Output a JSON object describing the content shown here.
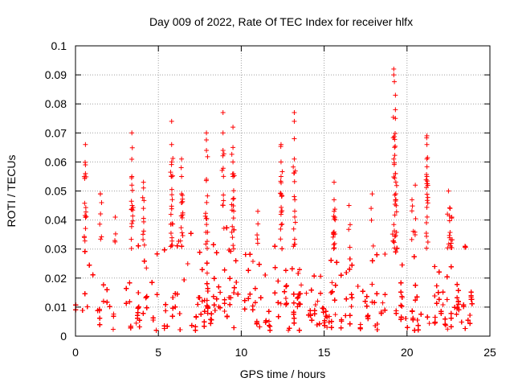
{
  "chart_data": {
    "type": "scatter",
    "title": "Day 009 of 2022, Rate Of TEC Index for receiver hlfx",
    "xlabel": "GPS time / hours",
    "ylabel": "ROTI / TECUs",
    "xlim": [
      0,
      25
    ],
    "ylim": [
      0,
      0.1
    ],
    "x_ticks": [
      "0",
      "5",
      "10",
      "15",
      "20",
      "25"
    ],
    "y_ticks": [
      "0",
      "0.01",
      "0.02",
      "0.03",
      "0.04",
      "0.05",
      "0.06",
      "0.07",
      "0.08",
      "0.09",
      "0.1"
    ],
    "grid": true,
    "marker": "+",
    "color": "#ff0000",
    "x_extent": [
      0,
      24
    ],
    "series": [
      {
        "name": "",
        "notable_points": [
          {
            "x": 0.6,
            "y": 0.066
          },
          {
            "x": 0.6,
            "y": 0.059
          },
          {
            "x": 0.6,
            "y": 0.056
          },
          {
            "x": 1.5,
            "y": 0.049
          },
          {
            "x": 2.4,
            "y": 0.041
          },
          {
            "x": 3.4,
            "y": 0.07
          },
          {
            "x": 3.4,
            "y": 0.055
          },
          {
            "x": 3.4,
            "y": 0.052
          },
          {
            "x": 4.1,
            "y": 0.053
          },
          {
            "x": 4.1,
            "y": 0.044
          },
          {
            "x": 5.8,
            "y": 0.074
          },
          {
            "x": 5.8,
            "y": 0.066
          },
          {
            "x": 5.8,
            "y": 0.06
          },
          {
            "x": 5.8,
            "y": 0.055
          },
          {
            "x": 6.4,
            "y": 0.061
          },
          {
            "x": 6.4,
            "y": 0.055
          },
          {
            "x": 6.4,
            "y": 0.049
          },
          {
            "x": 7.9,
            "y": 0.07
          },
          {
            "x": 7.9,
            "y": 0.064
          },
          {
            "x": 7.9,
            "y": 0.054
          },
          {
            "x": 8.9,
            "y": 0.077
          },
          {
            "x": 8.9,
            "y": 0.07
          },
          {
            "x": 8.9,
            "y": 0.064
          },
          {
            "x": 9.5,
            "y": 0.072
          },
          {
            "x": 9.5,
            "y": 0.065
          },
          {
            "x": 9.5,
            "y": 0.06
          },
          {
            "x": 9.5,
            "y": 0.055
          },
          {
            "x": 11.0,
            "y": 0.043
          },
          {
            "x": 12.4,
            "y": 0.066
          },
          {
            "x": 12.4,
            "y": 0.06
          },
          {
            "x": 12.4,
            "y": 0.055
          },
          {
            "x": 12.4,
            "y": 0.049
          },
          {
            "x": 13.2,
            "y": 0.077
          },
          {
            "x": 13.2,
            "y": 0.074
          },
          {
            "x": 13.2,
            "y": 0.068
          },
          {
            "x": 13.2,
            "y": 0.061
          },
          {
            "x": 15.6,
            "y": 0.053
          },
          {
            "x": 15.6,
            "y": 0.047
          },
          {
            "x": 15.6,
            "y": 0.043
          },
          {
            "x": 16.5,
            "y": 0.045
          },
          {
            "x": 17.9,
            "y": 0.049
          },
          {
            "x": 19.2,
            "y": 0.092
          },
          {
            "x": 19.2,
            "y": 0.09
          },
          {
            "x": 19.3,
            "y": 0.083
          },
          {
            "x": 19.3,
            "y": 0.078
          },
          {
            "x": 19.3,
            "y": 0.075
          },
          {
            "x": 19.2,
            "y": 0.061
          },
          {
            "x": 19.3,
            "y": 0.056
          },
          {
            "x": 20.5,
            "y": 0.052
          },
          {
            "x": 20.3,
            "y": 0.047
          },
          {
            "x": 21.2,
            "y": 0.069
          },
          {
            "x": 21.2,
            "y": 0.066
          },
          {
            "x": 21.2,
            "y": 0.061
          },
          {
            "x": 21.2,
            "y": 0.055
          },
          {
            "x": 22.5,
            "y": 0.05
          },
          {
            "x": 22.6,
            "y": 0.044
          },
          {
            "x": 22.7,
            "y": 0.041
          },
          {
            "x": 23.5,
            "y": 0.031
          }
        ],
        "dense_band": [
          {
            "x": 0,
            "y_low": 0.002,
            "y_high": 0.028
          },
          {
            "x": 1,
            "y_low": 0.002,
            "y_high": 0.033
          },
          {
            "x": 2,
            "y_low": 0.002,
            "y_high": 0.025
          },
          {
            "x": 3,
            "y_low": 0.002,
            "y_high": 0.03
          },
          {
            "x": 4,
            "y_low": 0.002,
            "y_high": 0.031
          },
          {
            "x": 5,
            "y_low": 0.002,
            "y_high": 0.03
          },
          {
            "x": 6,
            "y_low": 0.002,
            "y_high": 0.033
          },
          {
            "x": 7,
            "y_low": 0.002,
            "y_high": 0.035
          },
          {
            "x": 8,
            "y_low": 0.002,
            "y_high": 0.038
          },
          {
            "x": 9,
            "y_low": 0.002,
            "y_high": 0.04
          },
          {
            "x": 10,
            "y_low": 0.002,
            "y_high": 0.033
          },
          {
            "x": 11,
            "y_low": 0.002,
            "y_high": 0.028
          },
          {
            "x": 12,
            "y_low": 0.002,
            "y_high": 0.032
          },
          {
            "x": 13,
            "y_low": 0.002,
            "y_high": 0.031
          },
          {
            "x": 14,
            "y_low": 0.002,
            "y_high": 0.022
          },
          {
            "x": 15,
            "y_low": 0.002,
            "y_high": 0.022
          },
          {
            "x": 16,
            "y_low": 0.002,
            "y_high": 0.031
          },
          {
            "x": 17,
            "y_low": 0.002,
            "y_high": 0.03
          },
          {
            "x": 18,
            "y_low": 0.002,
            "y_high": 0.029
          },
          {
            "x": 19,
            "y_low": 0.002,
            "y_high": 0.033
          },
          {
            "x": 20,
            "y_low": 0.002,
            "y_high": 0.03
          },
          {
            "x": 21,
            "y_low": 0.002,
            "y_high": 0.026
          },
          {
            "x": 22,
            "y_low": 0.002,
            "y_high": 0.03
          },
          {
            "x": 23,
            "y_low": 0.002,
            "y_high": 0.024
          },
          {
            "x": 24,
            "y_low": 0.002,
            "y_high": 0.016
          }
        ]
      }
    ]
  }
}
